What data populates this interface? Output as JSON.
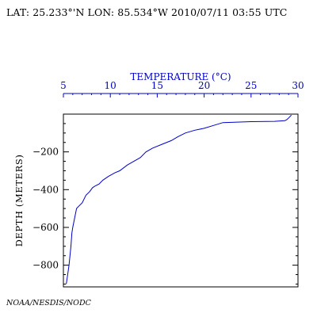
{
  "header": {
    "text": "LAT: 25.233°'N LON: 85.534°W 2010/07/11 03:55 UTC"
  },
  "footer": {
    "text": "NOAA/NESDIS/NODC"
  },
  "colors": {
    "profile": "#0000cc",
    "top_axis": "#0000cc",
    "frame": "#000000"
  },
  "chart_data": {
    "type": "line",
    "xlabel": "TEMPERATURE (°C)",
    "ylabel": "DEPTH (METERS)",
    "x_axis_position": "top",
    "xlim": [
      5,
      30
    ],
    "ylim": [
      -915,
      0
    ],
    "x_ticks": [
      5,
      10,
      15,
      20,
      25,
      30
    ],
    "x_tick_labels": [
      "5",
      "10",
      "15",
      "20",
      "25",
      "30"
    ],
    "y_ticks": [
      -200,
      -400,
      -600,
      -800
    ],
    "y_tick_labels": [
      "−200",
      "−400",
      "−600",
      "−800"
    ],
    "grid": false,
    "series": [
      {
        "x": [
          29.3,
          29.0,
          28.8,
          28.6,
          27.5,
          25.0,
          22.0,
          21.0,
          20.0,
          19.0,
          18.0,
          17.2,
          16.5,
          15.5,
          14.5,
          13.8,
          13.2,
          12.5,
          11.8,
          11.0,
          10.5,
          9.8,
          9.2,
          8.8,
          8.4,
          8.1,
          7.8,
          7.4,
          7.0,
          6.6,
          6.4,
          6.2,
          6.0,
          5.9,
          5.8,
          5.6,
          5.4,
          5.3
        ],
        "y": [
          -5,
          -20,
          -30,
          -35,
          -38,
          -40,
          -45,
          -60,
          -75,
          -85,
          -100,
          -120,
          -140,
          -160,
          -180,
          -200,
          -230,
          -250,
          -270,
          -300,
          -310,
          -330,
          -350,
          -370,
          -380,
          -390,
          -410,
          -430,
          -470,
          -490,
          -500,
          -550,
          -600,
          -630,
          -700,
          -800,
          -870,
          -900
        ]
      }
    ]
  }
}
